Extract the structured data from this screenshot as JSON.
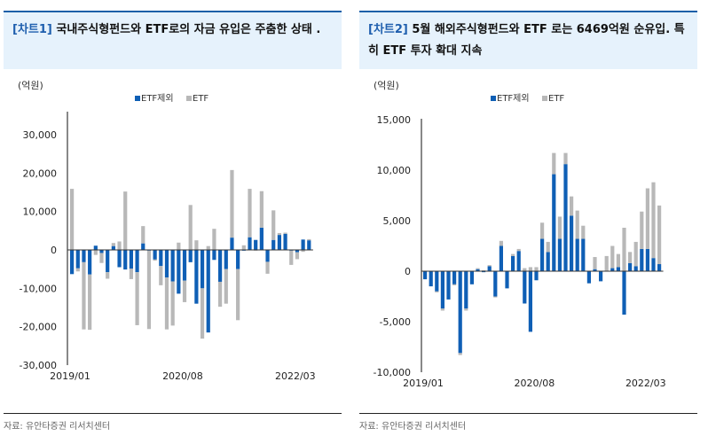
{
  "charts": [
    {
      "tag": "[차트1]",
      "title": "국내주식형펀드와 ETF로의 자금 유입은 주춤한 상태 .",
      "source": "자료: 유안타증권 리서치센터"
    },
    {
      "tag": "[차트2]",
      "title": "5월 해외주식형펀드와 ETF 로는 6469억원 순유입. 특히 ETF 투자 확대 지속",
      "source": "자료: 유안타증권 리서치센터"
    }
  ],
  "chart_data": [
    {
      "type": "bar",
      "stacked": true,
      "unit_label": "(억원)",
      "legend": [
        "ETF제외",
        "ETF"
      ],
      "legend_position": "top-center",
      "colors": {
        "ETF제외": "#0f5fb5",
        "ETF": "#b8b8b8"
      },
      "ylim": [
        -30000,
        35000
      ],
      "yticks": [
        -30000,
        -20000,
        -10000,
        0,
        10000,
        20000,
        30000
      ],
      "ytick_labels": [
        "-30,000",
        "-20,000",
        "-10,000",
        "0",
        "10,000",
        "20,000",
        "30,000"
      ],
      "xtick_labels": [
        "2019/01",
        "2020/08",
        "2022/03"
      ],
      "xtick_index": [
        0,
        19,
        38
      ],
      "series": [
        {
          "name": "ETF제외",
          "values": [
            -6300,
            -4800,
            -3200,
            -6400,
            1100,
            -800,
            -5800,
            1000,
            -4500,
            -5100,
            -4900,
            -5800,
            1700,
            -200,
            -2500,
            -4200,
            -7200,
            -8200,
            -11400,
            -8000,
            -3200,
            -14000,
            -10000,
            -21500,
            -2600,
            -8300,
            -5000,
            3200,
            -5000,
            -200,
            3300,
            2600,
            5800,
            -3100,
            2600,
            3900,
            4200,
            -200,
            -600,
            2700,
            2500
          ]
        },
        {
          "name": "ETF",
          "values": [
            15900,
            -800,
            -17500,
            -14400,
            -1300,
            -2600,
            -1700,
            800,
            2200,
            15200,
            -2700,
            -13800,
            4500,
            -20400,
            -300,
            -5000,
            -13500,
            -11500,
            1900,
            -5600,
            11700,
            2500,
            -13100,
            1000,
            5500,
            -6500,
            -9000,
            17600,
            -13300,
            1200,
            12600,
            -200,
            9500,
            -3100,
            7700,
            500,
            300,
            -3700,
            -1800,
            -500,
            300
          ]
        }
      ]
    },
    {
      "type": "bar",
      "stacked": true,
      "unit_label": "(억원)",
      "legend": [
        "ETF제외",
        "ETF"
      ],
      "legend_position": "top-center",
      "colors": {
        "ETF제외": "#0f5fb5",
        "ETF": "#b8b8b8"
      },
      "ylim": [
        -10000,
        15000
      ],
      "yticks": [
        -10000,
        -5000,
        0,
        5000,
        10000,
        15000
      ],
      "ytick_labels": [
        "-10,000",
        "-5,000",
        "0",
        "5,000",
        "10,000",
        "15,000"
      ],
      "xtick_labels": [
        "2019/01",
        "2020/08",
        "2022/03"
      ],
      "xtick_index": [
        0,
        19,
        38
      ],
      "series": [
        {
          "name": "ETF제외",
          "values": [
            -800,
            -1500,
            -2000,
            -3700,
            -2800,
            -1300,
            -8100,
            -3700,
            -1300,
            200,
            -100,
            500,
            -2500,
            2500,
            -1700,
            1500,
            2000,
            -3200,
            -6000,
            -900,
            3200,
            1900,
            9600,
            3200,
            10600,
            5500,
            3200,
            3200,
            -1200,
            200,
            -1000,
            0,
            300,
            400,
            -4300,
            800,
            500,
            2200,
            2200,
            1300,
            700
          ]
        },
        {
          "name": "ETF",
          "values": [
            0,
            0,
            -100,
            -200,
            0,
            -100,
            -200,
            -200,
            0,
            100,
            100,
            100,
            -100,
            500,
            0,
            200,
            200,
            300,
            400,
            400,
            1600,
            1000,
            2100,
            2200,
            1100,
            1900,
            2800,
            1300,
            0,
            1200,
            0,
            1500,
            2200,
            1300,
            4300,
            1100,
            2400,
            3700,
            6000,
            7500,
            5800
          ]
        }
      ]
    }
  ]
}
